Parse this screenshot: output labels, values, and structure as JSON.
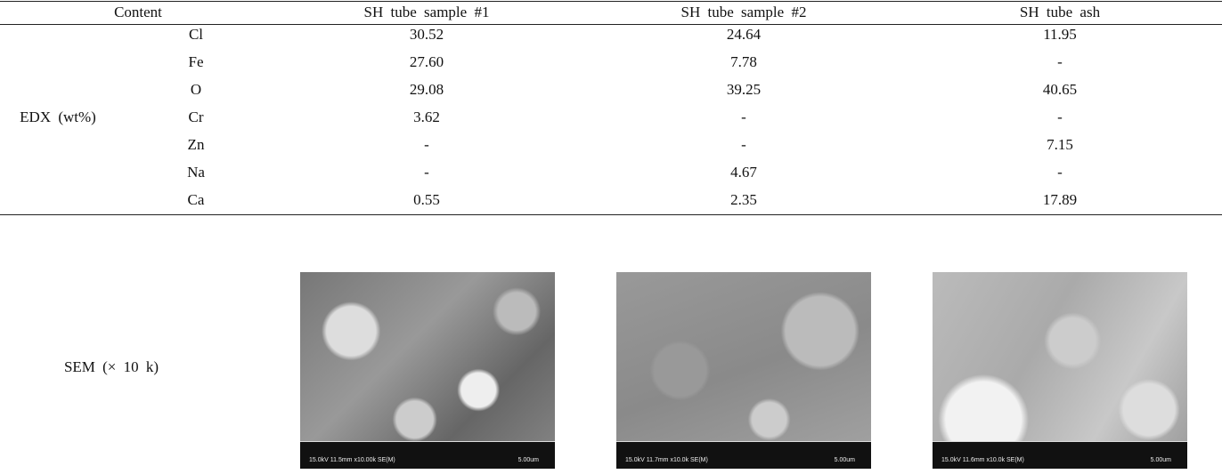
{
  "table": {
    "header": [
      "Content",
      "SH tube sample #1",
      "SH tube sample #2",
      "SH tube ash"
    ],
    "edx_label": "EDX (wt%)",
    "rows": [
      [
        "Cl",
        "30.52",
        "24.64",
        "11.95"
      ],
      [
        "Fe",
        "27.60",
        "7.78",
        "-"
      ],
      [
        "O",
        "29.08",
        "39.25",
        "40.65"
      ],
      [
        "Cr",
        "3.62",
        "-",
        "-"
      ],
      [
        "Zn",
        "-",
        "-",
        "7.15"
      ],
      [
        "Na",
        "-",
        "4.67",
        "-"
      ],
      [
        "Ca",
        "0.55",
        "2.35",
        "17.89"
      ]
    ],
    "sem_label": "SEM (× 10 k)",
    "images": [
      {
        "caption": "15.0kV 11.5mm x10.00k SE(M)",
        "scale": "5.00um"
      },
      {
        "caption": "15.0kV 11.7mm x10.0k SE(M)",
        "scale": "5.00um"
      },
      {
        "caption": "15.0kV 11.6mm x10.0k SE(M)",
        "scale": "5.00um"
      }
    ]
  }
}
